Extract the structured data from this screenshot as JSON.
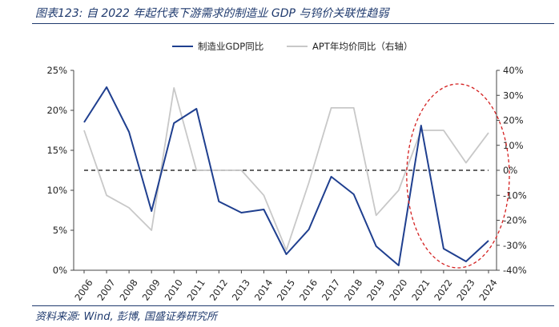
{
  "figure": {
    "title": "图表123: 自 2022 年起代表下游需求的制造业 GDP 与钨价关联性趋弱",
    "source": "资料来源: Wind, 彭博, 国盛证券研究所"
  },
  "chart_data": {
    "type": "line",
    "title": "",
    "categories": [
      "2006",
      "2007",
      "2008",
      "2009",
      "2010",
      "2011",
      "2012",
      "2013",
      "2014",
      "2015",
      "2016",
      "2017",
      "2018",
      "2019",
      "2020",
      "2021",
      "2022",
      "2023",
      "2024"
    ],
    "series": [
      {
        "name": "制造业GDP同比",
        "axis": "left",
        "color": "#1f3f8f",
        "values": [
          18.5,
          22.9,
          17.3,
          7.4,
          18.4,
          20.2,
          8.6,
          7.2,
          7.6,
          2.0,
          5.1,
          11.7,
          9.5,
          3.0,
          0.6,
          18.1,
          2.7,
          1.1,
          3.7
        ]
      },
      {
        "name": "APT年均价同比（右轴）",
        "axis": "right",
        "color": "#c8c8c8",
        "values": [
          16,
          -10,
          -15,
          -24,
          33,
          0,
          0,
          0,
          -10,
          -32,
          -5,
          25,
          25,
          -18,
          -8,
          16,
          16,
          3,
          15
        ]
      }
    ],
    "left_axis": {
      "min": 0,
      "max": 25,
      "step": 5,
      "format": "percent"
    },
    "right_axis": {
      "min": -40,
      "max": 40,
      "step": 10,
      "format": "percent"
    },
    "reference_line": {
      "axis": "right",
      "value": 0,
      "style": "dashed",
      "color": "#333333"
    },
    "highlight": {
      "type": "ellipse",
      "from": "2021",
      "to": "2024",
      "style": "dashed",
      "color": "#d42020"
    },
    "legend_position": "top-center",
    "grid": false
  }
}
